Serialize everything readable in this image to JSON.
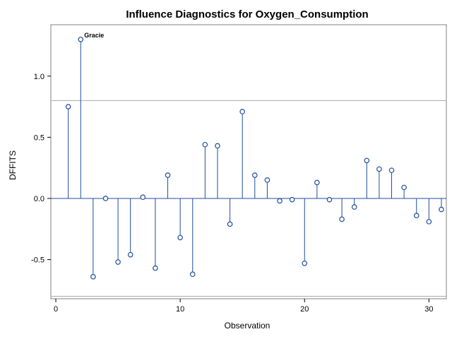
{
  "chart_data": {
    "type": "needle",
    "title": "Influence Diagnostics for Oxygen_Consumption",
    "xlabel": "Observation",
    "ylabel": "DFFITS",
    "xlim": [
      -0.4,
      31.4
    ],
    "ylim": [
      -0.82,
      1.42
    ],
    "x_ticks": [
      0,
      10,
      20,
      30
    ],
    "x_tick_labels": [
      "0",
      "10",
      "20",
      "30"
    ],
    "y_ticks": [
      -0.5,
      0.0,
      0.5,
      1.0
    ],
    "y_tick_labels": [
      "-0.5",
      "0.0",
      "0.5",
      "1.0"
    ],
    "reference_lines": [
      0.0,
      0.8,
      -0.8
    ],
    "grid": false,
    "colors": {
      "needle": "#1f4e9c",
      "marker": "#1f4e9c",
      "reference": "#a9a9a9",
      "zero_line": "#1f4e9c",
      "frame": "#808080"
    },
    "points": [
      {
        "x": 1,
        "y": 0.75
      },
      {
        "x": 2,
        "y": 1.3,
        "label": "Gracie"
      },
      {
        "x": 3,
        "y": -0.64
      },
      {
        "x": 4,
        "y": 0.0
      },
      {
        "x": 5,
        "y": -0.52
      },
      {
        "x": 6,
        "y": -0.46
      },
      {
        "x": 7,
        "y": 0.01
      },
      {
        "x": 8,
        "y": -0.57
      },
      {
        "x": 9,
        "y": 0.19
      },
      {
        "x": 10,
        "y": -0.32
      },
      {
        "x": 11,
        "y": -0.62
      },
      {
        "x": 12,
        "y": 0.44
      },
      {
        "x": 13,
        "y": 0.43
      },
      {
        "x": 14,
        "y": -0.21
      },
      {
        "x": 15,
        "y": 0.71
      },
      {
        "x": 16,
        "y": 0.19
      },
      {
        "x": 17,
        "y": 0.15
      },
      {
        "x": 18,
        "y": -0.02
      },
      {
        "x": 19,
        "y": -0.01
      },
      {
        "x": 20,
        "y": -0.53
      },
      {
        "x": 21,
        "y": 0.13
      },
      {
        "x": 22,
        "y": -0.01
      },
      {
        "x": 23,
        "y": -0.17
      },
      {
        "x": 24,
        "y": -0.07
      },
      {
        "x": 25,
        "y": 0.31
      },
      {
        "x": 26,
        "y": 0.24
      },
      {
        "x": 27,
        "y": 0.23
      },
      {
        "x": 28,
        "y": 0.09
      },
      {
        "x": 29,
        "y": -0.14
      },
      {
        "x": 30,
        "y": -0.19
      },
      {
        "x": 31,
        "y": -0.09
      }
    ]
  }
}
